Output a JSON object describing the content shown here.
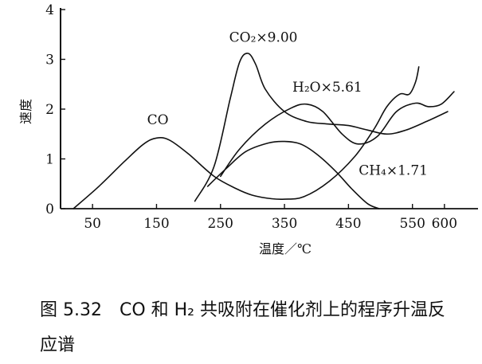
{
  "chart_data": {
    "type": "line",
    "title": "",
    "xlabel": "温度／℃",
    "ylabel": "速度",
    "xlim": [
      0,
      650
    ],
    "ylim": [
      0,
      4
    ],
    "x_ticks": [
      {
        "value": 50,
        "label": "50"
      },
      {
        "value": 150,
        "label": "150"
      },
      {
        "value": 250,
        "label": "250"
      },
      {
        "value": 350,
        "label": "350"
      },
      {
        "value": 450,
        "label": "450"
      },
      {
        "value": 550,
        "label": "550"
      },
      {
        "value": 600,
        "label": "600"
      }
    ],
    "y_ticks": [
      {
        "value": 0,
        "label": "0"
      },
      {
        "value": 1,
        "label": "1"
      },
      {
        "value": 2,
        "label": "2"
      },
      {
        "value": 3,
        "label": "3"
      },
      {
        "value": 4,
        "label": "4"
      }
    ],
    "grid": false,
    "series": [
      {
        "name": "CO",
        "points": [
          [
            20,
            0
          ],
          [
            60,
            0.45
          ],
          [
            100,
            0.95
          ],
          [
            130,
            1.3
          ],
          [
            150,
            1.42
          ],
          [
            170,
            1.38
          ],
          [
            200,
            1.1
          ],
          [
            240,
            0.65
          ],
          [
            275,
            0.4
          ],
          [
            300,
            0.27
          ],
          [
            330,
            0.2
          ],
          [
            350,
            0.19
          ],
          [
            380,
            0.24
          ],
          [
            420,
            0.55
          ],
          [
            460,
            1.05
          ],
          [
            490,
            1.6
          ],
          [
            510,
            2.05
          ],
          [
            530,
            2.3
          ],
          [
            545,
            2.3
          ],
          [
            555,
            2.55
          ],
          [
            560,
            2.85
          ]
        ],
        "label": {
          "text": "CO",
          "x": 152,
          "y": 1.7
        }
      },
      {
        "name": "CO₂×9.00",
        "points": [
          [
            210,
            0.15
          ],
          [
            240,
            0.85
          ],
          [
            265,
            2.2
          ],
          [
            280,
            2.95
          ],
          [
            293,
            3.12
          ],
          [
            305,
            2.9
          ],
          [
            320,
            2.4
          ],
          [
            350,
            1.95
          ],
          [
            385,
            1.75
          ],
          [
            420,
            1.7
          ],
          [
            450,
            1.67
          ],
          [
            480,
            1.58
          ],
          [
            510,
            1.5
          ],
          [
            540,
            1.58
          ],
          [
            575,
            1.77
          ],
          [
            605,
            1.95
          ]
        ],
        "label": {
          "text": "CO₂×9.00",
          "x": 317,
          "y": 3.35
        }
      },
      {
        "name": "H₂O×5.61",
        "points": [
          [
            250,
            0.65
          ],
          [
            280,
            1.2
          ],
          [
            320,
            1.7
          ],
          [
            360,
            2.02
          ],
          [
            385,
            2.1
          ],
          [
            410,
            1.95
          ],
          [
            440,
            1.5
          ],
          [
            465,
            1.3
          ],
          [
            495,
            1.45
          ],
          [
            525,
            1.95
          ],
          [
            555,
            2.12
          ],
          [
            575,
            2.05
          ],
          [
            595,
            2.1
          ],
          [
            615,
            2.35
          ]
        ],
        "label": {
          "text": "H₂O×5.61",
          "x": 417,
          "y": 2.35
        }
      },
      {
        "name": "CH₄×1.71",
        "points": [
          [
            230,
            0.45
          ],
          [
            260,
            0.82
          ],
          [
            290,
            1.15
          ],
          [
            325,
            1.32
          ],
          [
            350,
            1.35
          ],
          [
            375,
            1.3
          ],
          [
            400,
            1.1
          ],
          [
            430,
            0.75
          ],
          [
            455,
            0.4
          ],
          [
            480,
            0.1
          ],
          [
            498,
            0
          ]
        ],
        "label": {
          "text": "CH₄×1.71",
          "x": 520,
          "y": 0.68
        }
      }
    ]
  },
  "caption": {
    "line1": "图 5.32　CO 和 H₂ 共吸附在催化剂上的程序升温反",
    "line2": "应谱"
  }
}
